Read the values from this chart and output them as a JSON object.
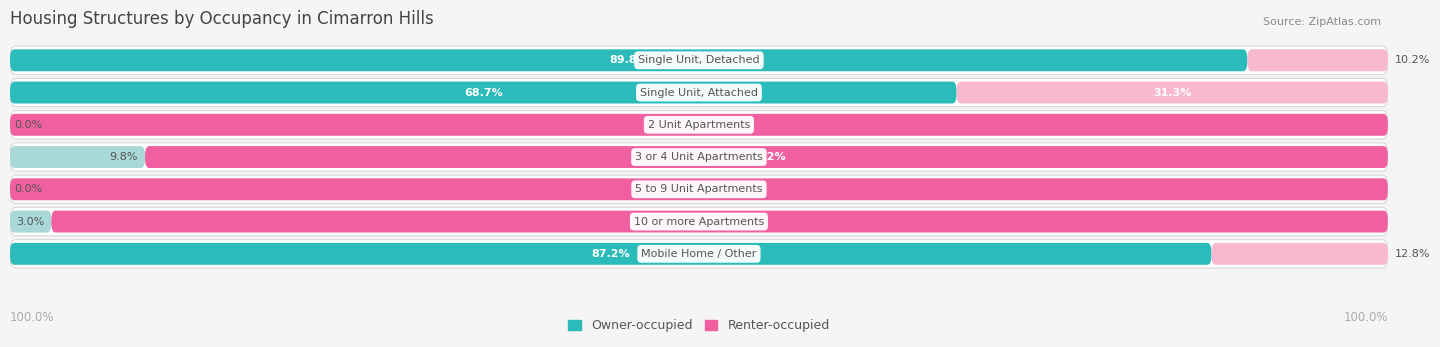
{
  "title": "Housing Structures by Occupancy in Cimarron Hills",
  "source": "Source: ZipAtlas.com",
  "categories": [
    "Single Unit, Detached",
    "Single Unit, Attached",
    "2 Unit Apartments",
    "3 or 4 Unit Apartments",
    "5 to 9 Unit Apartments",
    "10 or more Apartments",
    "Mobile Home / Other"
  ],
  "owner_pct": [
    89.8,
    68.7,
    0.0,
    9.8,
    0.0,
    3.0,
    87.2
  ],
  "renter_pct": [
    10.2,
    31.3,
    100.0,
    90.2,
    100.0,
    97.0,
    12.8
  ],
  "owner_color_solid": "#2BBBBB",
  "owner_color_light": "#A8D8D8",
  "renter_color_solid": "#F060A0",
  "renter_color_light": "#F8B8D0",
  "row_bg_color": "#EFEFEF",
  "row_border_color": "#D8D8D8",
  "fig_bg_color": "#F5F5F5",
  "title_color": "#444444",
  "source_color": "#888888",
  "label_dark": "#555555",
  "label_white": "#FFFFFF",
  "axis_label_color": "#AAAAAA",
  "legend_owner": "Owner-occupied",
  "legend_renter": "Renter-occupied"
}
